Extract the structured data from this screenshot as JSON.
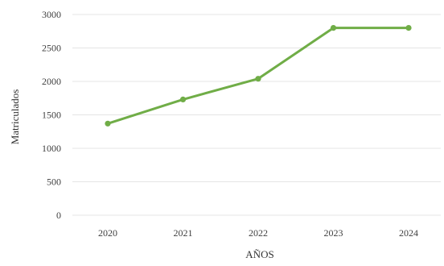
{
  "chart_data": {
    "type": "line",
    "categories": [
      "2020",
      "2021",
      "2022",
      "2023",
      "2024"
    ],
    "series": [
      {
        "values": [
          1370,
          1730,
          2040,
          2800,
          2800
        ]
      }
    ],
    "xlabel": "AÑOS",
    "ylabel": "Matriculados",
    "ylim": [
      0,
      3000
    ],
    "yticks": [
      "0",
      "500",
      "1000",
      "1500",
      "2000",
      "2500",
      "3000"
    ],
    "grid": true,
    "legend": "none",
    "colors": {
      "line": "#70ad47",
      "grid": "#e4e4e4"
    }
  }
}
